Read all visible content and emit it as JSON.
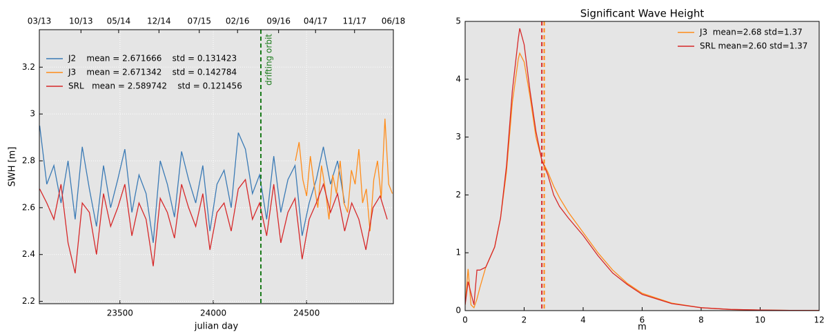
{
  "chart_data": [
    {
      "type": "line",
      "xlabel": "julian day",
      "ylabel": "SWH [m]",
      "xlim": [
        23068,
        24965
      ],
      "ylim": [
        2.19,
        3.36
      ],
      "xticks": [
        23500,
        24000,
        24500
      ],
      "yticks": [
        2.2,
        2.4,
        2.6,
        2.8,
        3.0,
        3.2
      ],
      "x2ticks": [
        {
          "value": 23068,
          "label": "03/13"
        },
        {
          "value": 23291,
          "label": "10/13"
        },
        {
          "value": 23493,
          "label": "05/14"
        },
        {
          "value": 23709,
          "label": "12/14"
        },
        {
          "value": 23925,
          "label": "07/15"
        },
        {
          "value": 24130,
          "label": "02/16"
        },
        {
          "value": 24350,
          "label": "09/16"
        },
        {
          "value": 24548,
          "label": "04/17"
        },
        {
          "value": 24757,
          "label": "11/17"
        },
        {
          "value": 24965,
          "label": "06/18"
        }
      ],
      "grid": true,
      "legend": "upper left",
      "vlines": [
        {
          "x": 24255,
          "color": "#1a7a1a",
          "label": "drifting orbit"
        }
      ],
      "series": [
        {
          "name": "J2    mean = 2.671666    std = 0.131423",
          "color": "#3a7ab5",
          "x": [
            23070,
            23108,
            23146,
            23184,
            23222,
            23260,
            23298,
            23336,
            23374,
            23412,
            23450,
            23488,
            23526,
            23564,
            23602,
            23640,
            23678,
            23716,
            23754,
            23792,
            23830,
            23868,
            23906,
            23944,
            23982,
            24020,
            24058,
            24096,
            24134,
            24172,
            24210,
            24248,
            24286,
            24324,
            24362,
            24400,
            24438,
            24476,
            24514,
            24552,
            24590,
            24628,
            24666,
            24704
          ],
          "values": [
            2.95,
            2.7,
            2.78,
            2.62,
            2.8,
            2.55,
            2.86,
            2.68,
            2.52,
            2.78,
            2.6,
            2.72,
            2.85,
            2.58,
            2.74,
            2.66,
            2.45,
            2.8,
            2.7,
            2.56,
            2.84,
            2.72,
            2.62,
            2.78,
            2.5,
            2.7,
            2.76,
            2.6,
            2.92,
            2.85,
            2.66,
            2.74,
            2.55,
            2.82,
            2.58,
            2.72,
            2.78,
            2.48,
            2.62,
            2.72,
            2.86,
            2.7,
            2.8,
            2.62
          ]
        },
        {
          "name": "J3    mean = 2.671342    std = 0.142784",
          "color": "#ff8c1a",
          "x": [
            24440,
            24460,
            24480,
            24500,
            24520,
            24540,
            24560,
            24580,
            24600,
            24620,
            24640,
            24660,
            24680,
            24700,
            24720,
            24740,
            24760,
            24780,
            24800,
            24820,
            24840,
            24860,
            24880,
            24900,
            24920,
            24940,
            24960
          ],
          "values": [
            2.8,
            2.88,
            2.72,
            2.65,
            2.82,
            2.7,
            2.6,
            2.78,
            2.68,
            2.55,
            2.74,
            2.66,
            2.8,
            2.62,
            2.58,
            2.76,
            2.7,
            2.85,
            2.62,
            2.68,
            2.5,
            2.72,
            2.8,
            2.64,
            2.98,
            2.7,
            2.66
          ]
        },
        {
          "name": "SRL   mean = 2.589742    std = 0.121456",
          "color": "#d62728",
          "x": [
            23070,
            23108,
            23146,
            23184,
            23222,
            23260,
            23298,
            23336,
            23374,
            23412,
            23450,
            23488,
            23526,
            23564,
            23602,
            23640,
            23678,
            23716,
            23754,
            23792,
            23830,
            23868,
            23906,
            23944,
            23982,
            24020,
            24058,
            24096,
            24134,
            24172,
            24210,
            24248,
            24286,
            24324,
            24362,
            24400,
            24438,
            24476,
            24514,
            24552,
            24590,
            24628,
            24666,
            24704,
            24742,
            24780,
            24818,
            24856,
            24894,
            24932
          ],
          "values": [
            2.68,
            2.62,
            2.55,
            2.7,
            2.45,
            2.32,
            2.62,
            2.58,
            2.4,
            2.66,
            2.52,
            2.6,
            2.7,
            2.48,
            2.62,
            2.55,
            2.35,
            2.64,
            2.58,
            2.47,
            2.7,
            2.6,
            2.52,
            2.66,
            2.42,
            2.58,
            2.62,
            2.5,
            2.68,
            2.72,
            2.55,
            2.62,
            2.48,
            2.7,
            2.45,
            2.58,
            2.64,
            2.38,
            2.55,
            2.62,
            2.7,
            2.58,
            2.66,
            2.5,
            2.62,
            2.55,
            2.42,
            2.6,
            2.65,
            2.55
          ]
        }
      ]
    },
    {
      "type": "line",
      "title": "Significant Wave Height",
      "xlabel": "m",
      "xlim": [
        0,
        12
      ],
      "ylim": [
        0,
        5
      ],
      "xticks": [
        0,
        2,
        4,
        6,
        8,
        10,
        12
      ],
      "yticks": [
        0,
        1,
        2,
        3,
        4,
        5
      ],
      "grid": false,
      "legend": "upper right",
      "vlines": [
        {
          "x": 2.68,
          "color": "#ff8c1a"
        },
        {
          "x": 2.6,
          "color": "#d62728"
        }
      ],
      "x": [
        0,
        0.1,
        0.2,
        0.3,
        0.4,
        0.5,
        0.7,
        1,
        1.2,
        1.4,
        1.6,
        1.8,
        1.85,
        2,
        2.2,
        2.4,
        2.6,
        2.8,
        3,
        3.2,
        3.5,
        4,
        4.5,
        5,
        5.5,
        6,
        7,
        8,
        9,
        10,
        11,
        12
      ],
      "series": [
        {
          "name": "J3  mean=2.68 std=1.37",
          "color": "#ff8c1a",
          "values": [
            0.1,
            0.72,
            0.1,
            0.05,
            0.2,
            0.4,
            0.75,
            1.1,
            1.6,
            2.4,
            3.6,
            4.35,
            4.45,
            4.3,
            3.7,
            3.0,
            2.6,
            2.4,
            2.15,
            1.95,
            1.7,
            1.35,
            1.0,
            0.7,
            0.47,
            0.3,
            0.13,
            0.05,
            0.02,
            0.01,
            0.005,
            0.002
          ]
        },
        {
          "name": "SRL mean=2.60 std=1.37",
          "color": "#d62728",
          "values": [
            0.1,
            0.5,
            0.3,
            0.1,
            0.7,
            0.7,
            0.75,
            1.1,
            1.6,
            2.5,
            3.8,
            4.7,
            4.88,
            4.6,
            3.8,
            3.1,
            2.6,
            2.35,
            2.0,
            1.8,
            1.6,
            1.3,
            0.95,
            0.65,
            0.45,
            0.28,
            0.12,
            0.05,
            0.02,
            0.01,
            0.005,
            0.002
          ]
        }
      ]
    }
  ]
}
